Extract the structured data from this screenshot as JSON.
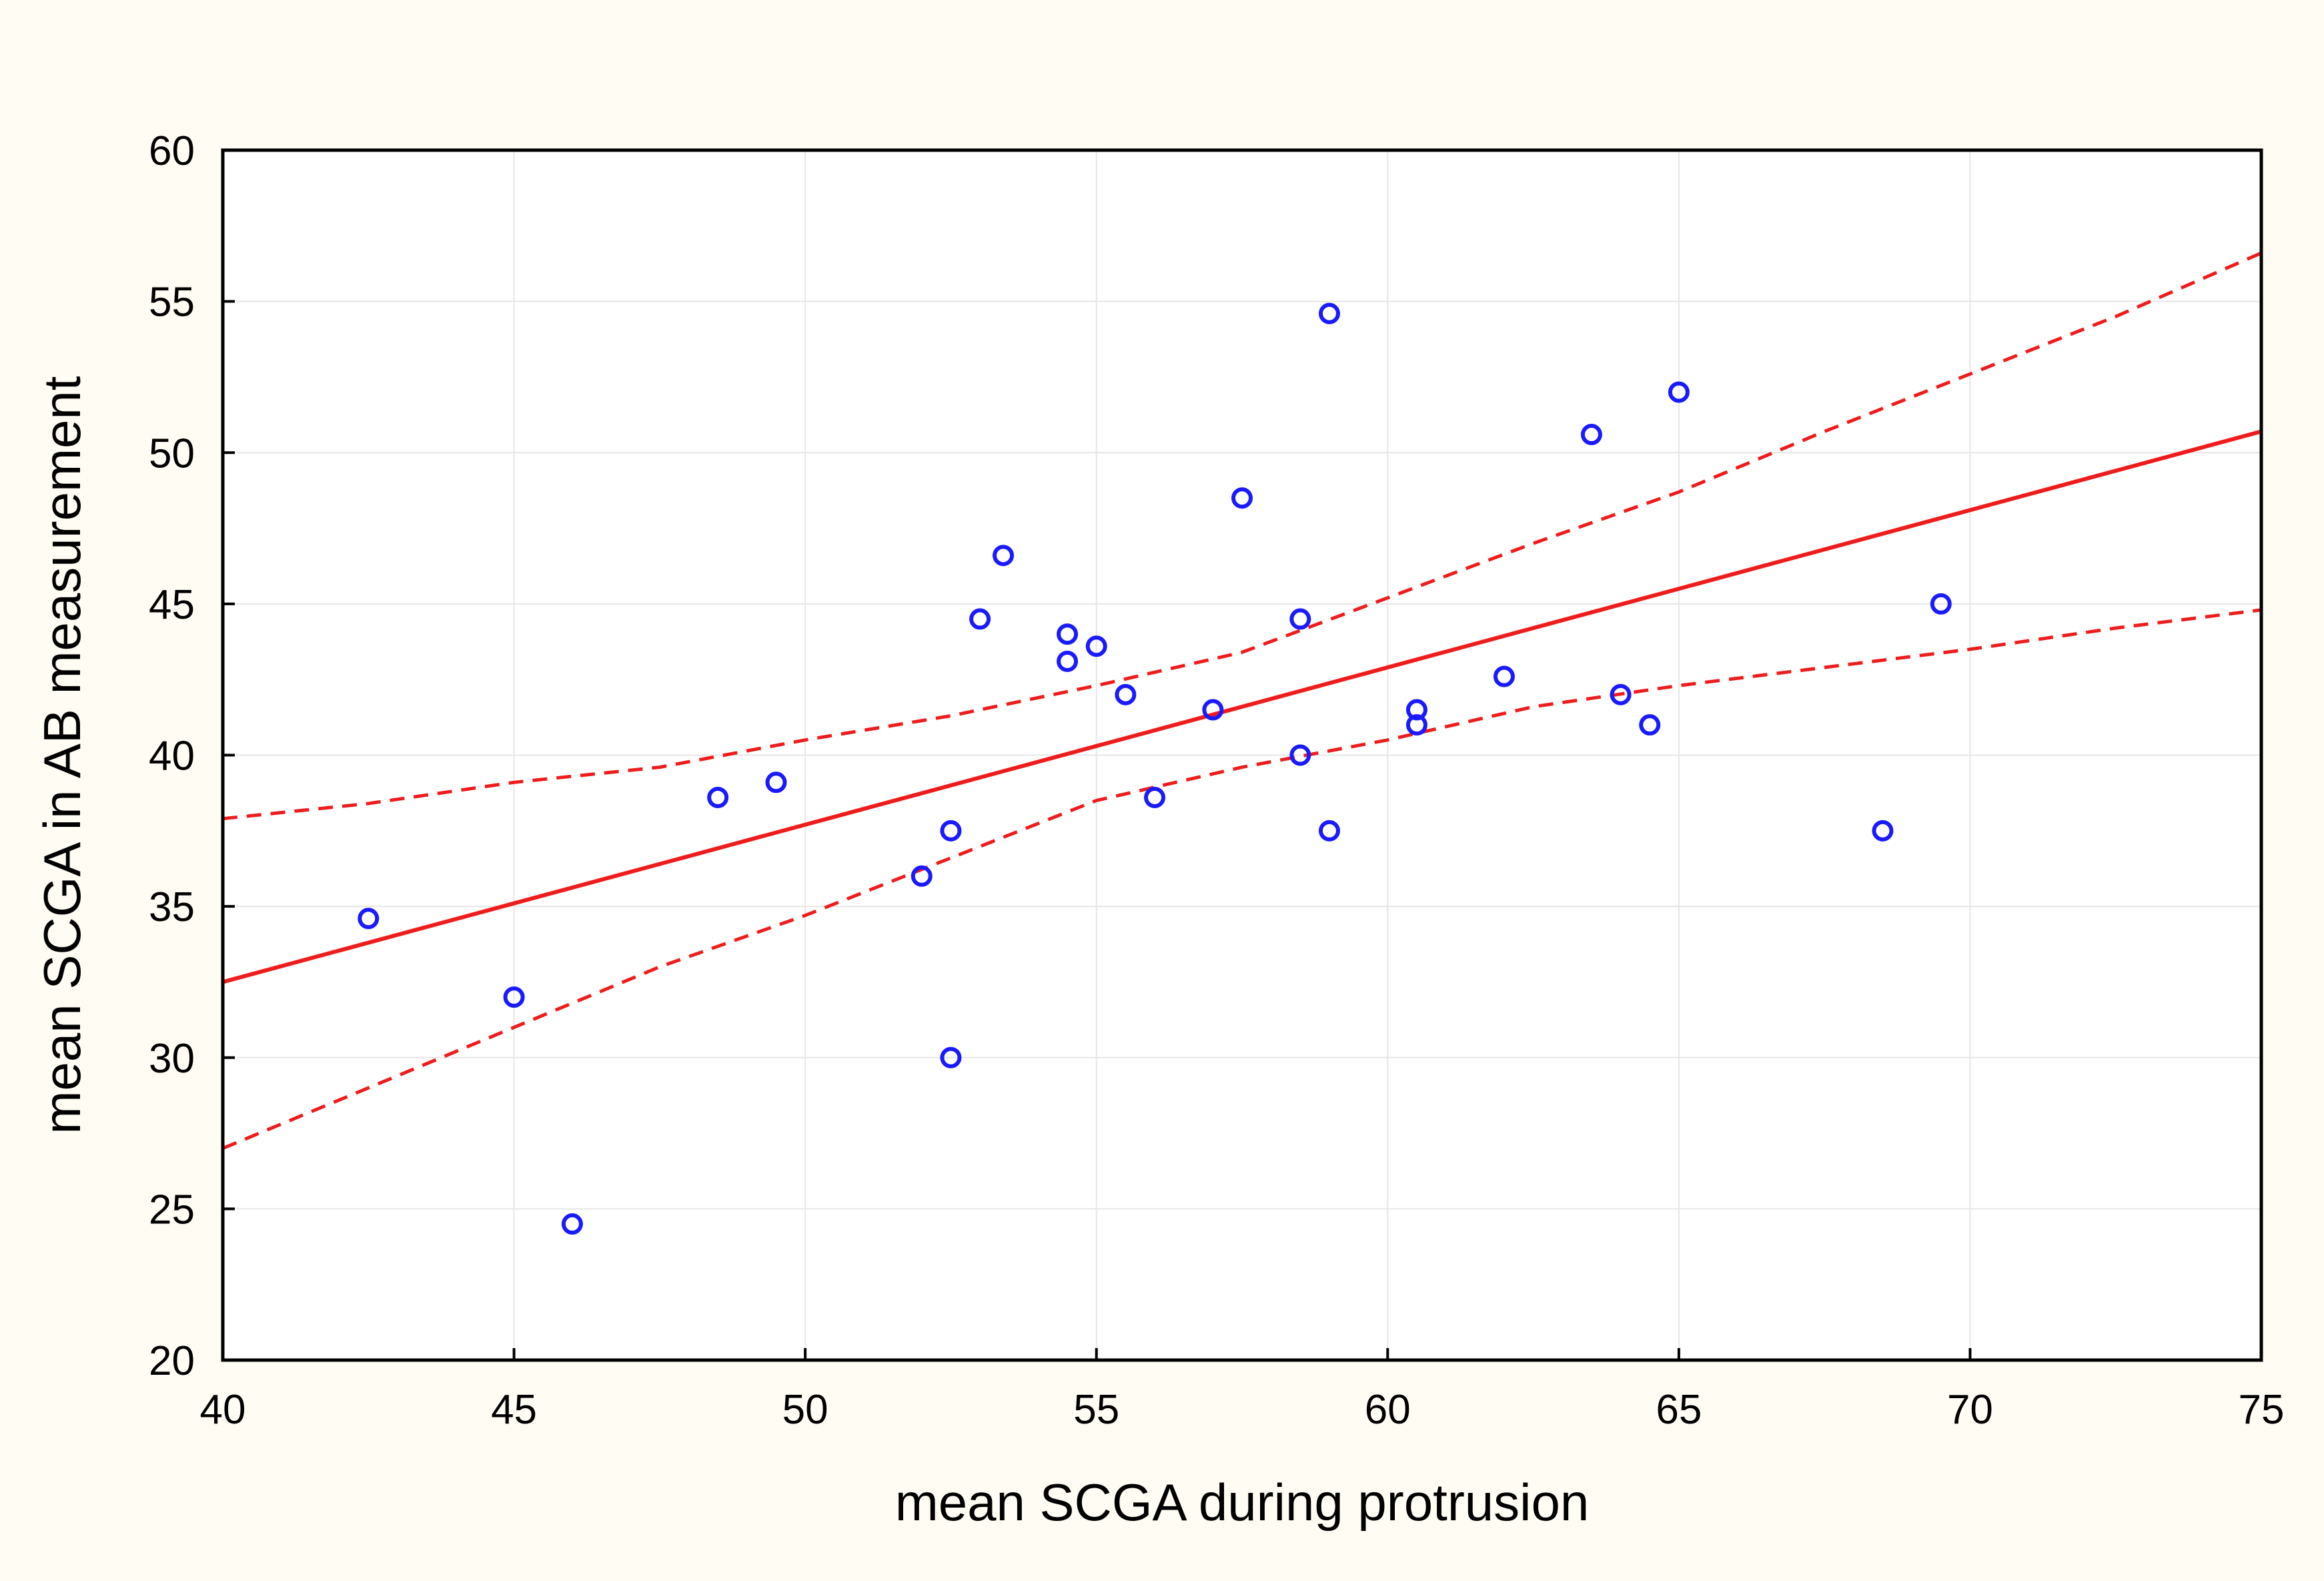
{
  "colors": {
    "background": "#fffdf3",
    "plot_background": "#ffffff",
    "grid": "#e6e6e6",
    "axis": "#000000",
    "points": "#1a1aff",
    "fit_line": "#ee1c1c"
  },
  "chart_data": {
    "type": "scatter",
    "title": "",
    "xlabel": "mean SCGA during protrusion",
    "ylabel": "mean SCGA in AB measurement",
    "xlim": [
      40,
      75
    ],
    "ylim": [
      20,
      60
    ],
    "grid": true,
    "x_ticks": [
      40,
      45,
      50,
      55,
      60,
      65,
      70,
      75
    ],
    "y_ticks": [
      20,
      25,
      30,
      35,
      40,
      45,
      50,
      55,
      60
    ],
    "points": [
      {
        "x": 42.5,
        "y": 34.6
      },
      {
        "x": 45.0,
        "y": 32.0
      },
      {
        "x": 46.0,
        "y": 24.5
      },
      {
        "x": 48.5,
        "y": 38.6
      },
      {
        "x": 49.5,
        "y": 39.1
      },
      {
        "x": 52.0,
        "y": 36.0
      },
      {
        "x": 52.5,
        "y": 37.5
      },
      {
        "x": 52.5,
        "y": 30.0
      },
      {
        "x": 53.0,
        "y": 44.5
      },
      {
        "x": 53.4,
        "y": 46.6
      },
      {
        "x": 54.5,
        "y": 44.0
      },
      {
        "x": 54.5,
        "y": 43.1
      },
      {
        "x": 55.0,
        "y": 43.6
      },
      {
        "x": 55.5,
        "y": 42.0
      },
      {
        "x": 56.0,
        "y": 38.6
      },
      {
        "x": 57.0,
        "y": 41.5
      },
      {
        "x": 57.5,
        "y": 48.5
      },
      {
        "x": 58.5,
        "y": 44.5
      },
      {
        "x": 58.5,
        "y": 40.0
      },
      {
        "x": 59.0,
        "y": 54.6
      },
      {
        "x": 59.0,
        "y": 37.5
      },
      {
        "x": 60.5,
        "y": 41.5
      },
      {
        "x": 60.5,
        "y": 41.0
      },
      {
        "x": 62.0,
        "y": 42.6
      },
      {
        "x": 63.5,
        "y": 50.6
      },
      {
        "x": 64.0,
        "y": 42.0
      },
      {
        "x": 64.5,
        "y": 41.0
      },
      {
        "x": 65.0,
        "y": 52.0
      },
      {
        "x": 68.5,
        "y": 37.5
      },
      {
        "x": 69.5,
        "y": 45.0
      }
    ],
    "fit_line": {
      "x": [
        40,
        75
      ],
      "y": [
        32.5,
        50.7
      ]
    },
    "confidence_upper": {
      "x": [
        40,
        42.5,
        45,
        47.5,
        50,
        52.5,
        55,
        57.5,
        60,
        62.5,
        65,
        67.5,
        70,
        72.5,
        75
      ],
      "y": [
        37.9,
        38.4,
        39.1,
        39.6,
        40.5,
        41.3,
        42.3,
        43.4,
        45.2,
        47.0,
        48.7,
        50.7,
        52.6,
        54.5,
        56.6
      ]
    },
    "confidence_lower": {
      "x": [
        40,
        42.5,
        45,
        47.5,
        50,
        52.5,
        55,
        57.5,
        60,
        62.5,
        65,
        67.5,
        70,
        72.5,
        75
      ],
      "y": [
        27.0,
        29.0,
        31.0,
        33.0,
        34.7,
        36.6,
        38.5,
        39.6,
        40.5,
        41.6,
        42.3,
        42.9,
        43.5,
        44.2,
        44.8
      ]
    }
  }
}
